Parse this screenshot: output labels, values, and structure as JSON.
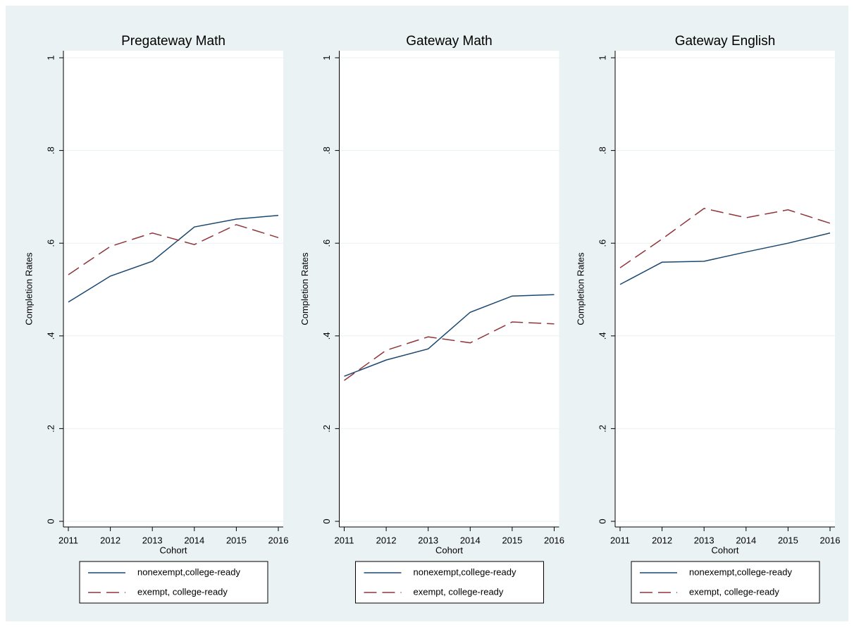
{
  "chart_data": [
    {
      "type": "line",
      "title": "Pregateway Math",
      "x_label": "Cohort",
      "y_label": "Completion Rates",
      "x": [
        2011,
        2012,
        2013,
        2014,
        2015,
        2016
      ],
      "series": [
        {
          "name": "nonexempt,college-ready",
          "color": "#1a476f",
          "dash": "solid",
          "values": [
            0.473,
            0.529,
            0.561,
            0.635,
            0.652,
            0.66
          ]
        },
        {
          "name": "exempt, college-ready",
          "color": "#90353b",
          "dash": "dashed",
          "values": [
            0.532,
            0.593,
            0.622,
            0.597,
            0.64,
            0.612
          ]
        }
      ],
      "xlim": [
        2011,
        2016
      ],
      "xticks": [
        2011,
        2012,
        2013,
        2014,
        2015,
        2016
      ],
      "ylim": [
        0,
        1
      ],
      "yticks": [
        0,
        {
          "value": 0.2,
          "label": ".2"
        },
        {
          "value": 0.4,
          "label": ".4"
        },
        {
          "value": 0.6,
          "label": ".6"
        },
        {
          "value": 0.8,
          "label": ".8"
        },
        1
      ],
      "grid": true
    },
    {
      "type": "line",
      "title": "Gateway Math",
      "x_label": "Cohort",
      "y_label": "Completion Rates",
      "x": [
        2011,
        2012,
        2013,
        2014,
        2015,
        2016
      ],
      "series": [
        {
          "name": "nonexempt,college-ready",
          "color": "#1a476f",
          "dash": "solid",
          "values": [
            0.313,
            0.348,
            0.372,
            0.451,
            0.486,
            0.489
          ]
        },
        {
          "name": "exempt, college-ready",
          "color": "#90353b",
          "dash": "dashed",
          "values": [
            0.304,
            0.369,
            0.398,
            0.385,
            0.43,
            0.426
          ]
        }
      ],
      "xlim": [
        2011,
        2016
      ],
      "xticks": [
        2011,
        2012,
        2013,
        2014,
        2015,
        2016
      ],
      "ylim": [
        0,
        1
      ],
      "yticks": [
        0,
        {
          "value": 0.2,
          "label": ".2"
        },
        {
          "value": 0.4,
          "label": ".4"
        },
        {
          "value": 0.6,
          "label": ".6"
        },
        {
          "value": 0.8,
          "label": ".8"
        },
        1
      ],
      "grid": true
    },
    {
      "type": "line",
      "title": "Gateway English",
      "x_label": "Cohort",
      "y_label": "Completion Rates",
      "x": [
        2011,
        2012,
        2013,
        2014,
        2015,
        2016
      ],
      "series": [
        {
          "name": "nonexempt,college-ready",
          "color": "#1a476f",
          "dash": "solid",
          "values": [
            0.511,
            0.559,
            0.561,
            0.581,
            0.6,
            0.622
          ]
        },
        {
          "name": "exempt, college-ready",
          "color": "#90353b",
          "dash": "dashed",
          "values": [
            0.547,
            0.609,
            0.675,
            0.655,
            0.672,
            0.643
          ]
        }
      ],
      "xlim": [
        2011,
        2016
      ],
      "xticks": [
        2011,
        2012,
        2013,
        2014,
        2015,
        2016
      ],
      "ylim": [
        0,
        1
      ],
      "yticks": [
        0,
        {
          "value": 0.2,
          "label": ".2"
        },
        {
          "value": 0.4,
          "label": ".4"
        },
        {
          "value": 0.6,
          "label": ".6"
        },
        {
          "value": 0.8,
          "label": ".8"
        },
        1
      ],
      "grid": true
    }
  ]
}
